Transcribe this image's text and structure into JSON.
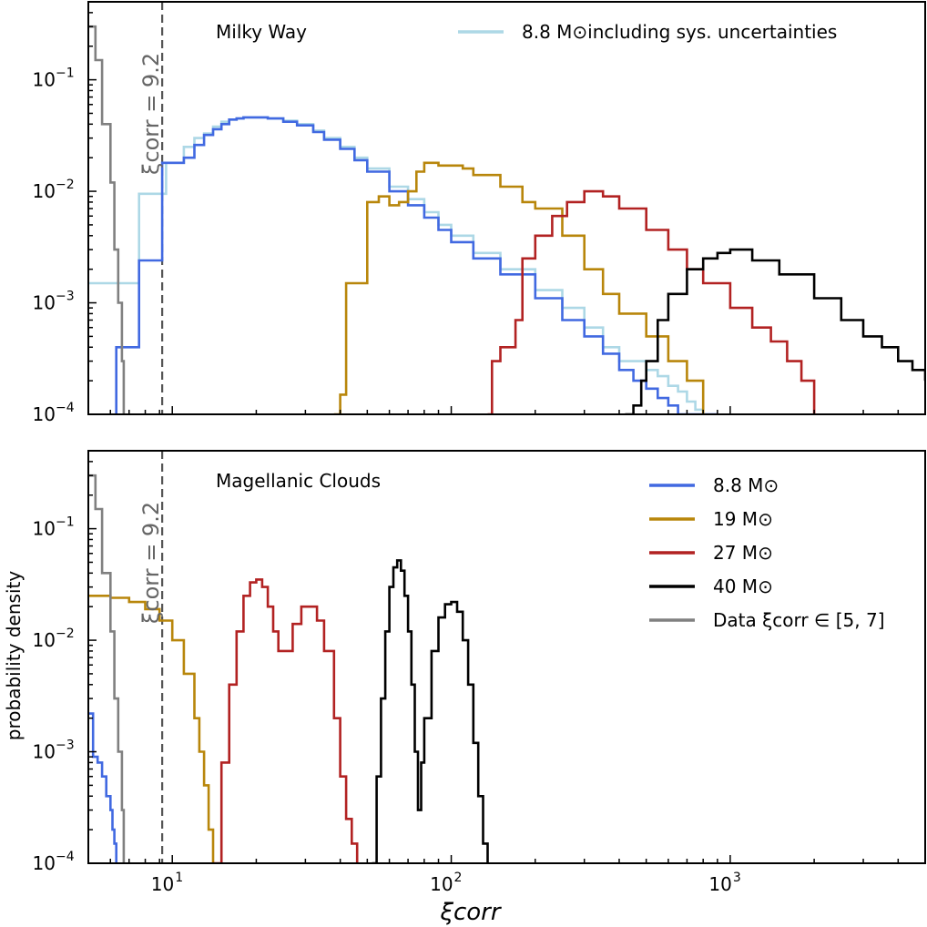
{
  "chart_data": [
    {
      "type": "line",
      "panel_label": "Milky Way",
      "xscale": "log",
      "yscale": "log",
      "xlim": [
        5,
        5000
      ],
      "ylim": [
        0.0001,
        0.5
      ],
      "x_ticks": [
        10,
        100,
        1000
      ],
      "y_ticks": [
        0.0001,
        0.001,
        0.01,
        0.1
      ],
      "y_tick_labels": [
        "10",
        "10",
        "10",
        "10"
      ],
      "y_tick_exponents": [
        "−4",
        "−3",
        "−2",
        "−1"
      ],
      "threshold_line": {
        "x": 9.2,
        "label": "ξcorr = 9.2"
      },
      "legend": {
        "position": "top-right",
        "entries": [
          {
            "label": "8.8 M⊙including sys. uncertainties",
            "color": "#add8e6"
          }
        ]
      },
      "series": [
        {
          "name": "8.8 M⊙including sys. uncertainties",
          "color": "#add8e6",
          "x": [
            5,
            5.8,
            6,
            7.6,
            8,
            8.5,
            9,
            9.5,
            10,
            11,
            12,
            13,
            14,
            15,
            16,
            17,
            18,
            20,
            22,
            25,
            28,
            32,
            35,
            40,
            45,
            50,
            60,
            70,
            80,
            90,
            100,
            120,
            150,
            200,
            250,
            300,
            350,
            400,
            450,
            500,
            550,
            600,
            650,
            700,
            750,
            800
          ],
          "y": [
            0.0015,
            0.0015,
            0.0015,
            0.0095,
            0.0095,
            0.0095,
            0.0095,
            0.018,
            0.018,
            0.025,
            0.03,
            0.033,
            0.038,
            0.042,
            0.044,
            0.045,
            0.046,
            0.046,
            0.045,
            0.043,
            0.04,
            0.035,
            0.03,
            0.025,
            0.02,
            0.016,
            0.011,
            0.0085,
            0.0065,
            0.005,
            0.004,
            0.0028,
            0.002,
            0.0013,
            0.0009,
            0.0006,
            0.0004,
            0.0003,
            0.0003,
            0.00025,
            0.00022,
            0.00018,
            0.00016,
            0.00013,
            0.00011,
            0.0001
          ]
        },
        {
          "name": "8.8 M⊙",
          "color": "#4169e1",
          "x": [
            6.3,
            6.3,
            7.6,
            9.2,
            9.2,
            10,
            11,
            12,
            13,
            14,
            15,
            16,
            17,
            18,
            20,
            22,
            25,
            28,
            32,
            35,
            40,
            45,
            50,
            60,
            70,
            80,
            90,
            100,
            120,
            150,
            200,
            250,
            300,
            350,
            400,
            450,
            500,
            550,
            600,
            650,
            700,
            800,
            900
          ],
          "y": [
            0.0001,
            0.0004,
            0.0024,
            0.0024,
            0.018,
            0.018,
            0.02,
            0.026,
            0.032,
            0.036,
            0.04,
            0.044,
            0.045,
            0.046,
            0.046,
            0.045,
            0.042,
            0.039,
            0.034,
            0.029,
            0.024,
            0.019,
            0.015,
            0.01,
            0.0075,
            0.0058,
            0.0045,
            0.0035,
            0.0025,
            0.0018,
            0.0011,
            0.0007,
            0.0005,
            0.00035,
            0.00025,
            0.0002,
            0.00017,
            0.00014,
            0.00012,
            0.0001,
            0.0001,
            0.0001,
            0.0001
          ]
        },
        {
          "name": "19 M⊙",
          "color": "#b8860b",
          "x": [
            38,
            38,
            40,
            42,
            45,
            50,
            55,
            60,
            65,
            70,
            75,
            80,
            90,
            100,
            110,
            120,
            150,
            180,
            200,
            250,
            300,
            350,
            400,
            500,
            600,
            700,
            800
          ],
          "y": [
            0.0001,
            0.0001,
            0.00015,
            0.0015,
            0.0015,
            0.008,
            0.009,
            0.0075,
            0.008,
            0.01,
            0.015,
            0.018,
            0.017,
            0.017,
            0.016,
            0.014,
            0.011,
            0.008,
            0.007,
            0.004,
            0.002,
            0.0012,
            0.0008,
            0.0005,
            0.0003,
            0.0002,
            0.0001
          ]
        },
        {
          "name": "27 M⊙",
          "color": "#b22222",
          "x": [
            135,
            135,
            140,
            150,
            160,
            170,
            180,
            200,
            230,
            260,
            300,
            350,
            400,
            500,
            600,
            700,
            800,
            1000,
            1200,
            1400,
            1600,
            1800,
            2000
          ],
          "y": [
            0.0001,
            0.0001,
            0.0003,
            0.0004,
            0.0004,
            0.0007,
            0.0025,
            0.004,
            0.006,
            0.008,
            0.01,
            0.009,
            0.007,
            0.0045,
            0.003,
            0.002,
            0.0015,
            0.0009,
            0.0006,
            0.00045,
            0.0003,
            0.0002,
            0.0001
          ]
        },
        {
          "name": "40 M⊙",
          "color": "#000000",
          "x": [
            420,
            420,
            450,
            480,
            500,
            550,
            600,
            700,
            800,
            900,
            1000,
            1200,
            1500,
            2000,
            2500,
            3000,
            3500,
            4000,
            4500,
            5000
          ],
          "y": [
            0.0001,
            0.0001,
            0.00012,
            0.0002,
            0.0003,
            0.0007,
            0.0012,
            0.002,
            0.0025,
            0.0028,
            0.003,
            0.0024,
            0.0018,
            0.0011,
            0.0007,
            0.0005,
            0.0004,
            0.0003,
            0.00025,
            0.0002
          ]
        },
        {
          "name": "Data ξcorr ∈ [5, 7]",
          "color": "#808080",
          "x": [
            5,
            5.3,
            5.6,
            6,
            6.2,
            6.4,
            6.6,
            6.7
          ],
          "y": [
            0.3,
            0.15,
            0.04,
            0.012,
            0.003,
            0.001,
            0.0003,
            0.0001
          ]
        }
      ]
    },
    {
      "type": "line",
      "panel_label": "Magellanic Clouds",
      "xscale": "log",
      "yscale": "log",
      "xlim": [
        5,
        5000
      ],
      "ylim": [
        0.0001,
        0.5
      ],
      "xlabel": "ξcorr",
      "ylabel": "probability density",
      "x_ticks": [
        10,
        100,
        1000
      ],
      "x_tick_labels": [
        "10",
        "10",
        "10"
      ],
      "x_tick_exponents": [
        "1",
        "2",
        "3"
      ],
      "y_ticks": [
        0.0001,
        0.001,
        0.01,
        0.1
      ],
      "y_tick_labels": [
        "10",
        "10",
        "10",
        "10"
      ],
      "y_tick_exponents": [
        "−4",
        "−3",
        "−2",
        "−1"
      ],
      "threshold_line": {
        "x": 9.2,
        "label": "ξcorr = 9.2"
      },
      "legend": {
        "position": "top-right",
        "entries": [
          {
            "label": "8.8 M⊙",
            "color": "#4169e1"
          },
          {
            "label": "19 M⊙",
            "color": "#b8860b"
          },
          {
            "label": "27 M⊙",
            "color": "#b22222"
          },
          {
            "label": "40 M⊙",
            "color": "#000000"
          },
          {
            "label": "Data ξcorr ∈ [5, 7]",
            "color": "#808080"
          }
        ]
      },
      "series": [
        {
          "name": "8.8 M⊙",
          "color": "#4169e1",
          "x": [
            5,
            5.2,
            5.4,
            5.6,
            5.8,
            6,
            6.1,
            6.2,
            6.3
          ],
          "y": [
            0.0022,
            0.0009,
            0.0008,
            0.0006,
            0.0004,
            0.0003,
            0.0002,
            0.00015,
            0.0001
          ]
        },
        {
          "name": "19 M⊙",
          "color": "#b8860b",
          "x": [
            5,
            6,
            7,
            8,
            9,
            10,
            11,
            12,
            12.5,
            13,
            13.5,
            14
          ],
          "y": [
            0.025,
            0.024,
            0.022,
            0.019,
            0.015,
            0.01,
            0.005,
            0.002,
            0.001,
            0.0005,
            0.0002,
            0.0001
          ]
        },
        {
          "name": "27 M⊙",
          "color": "#b22222",
          "x": [
            14,
            15,
            16,
            17,
            18,
            19,
            20,
            21,
            22,
            23,
            24,
            25,
            27,
            29,
            31,
            33,
            35,
            38,
            40,
            42,
            44,
            46
          ],
          "y": [
            0.0001,
            0.0008,
            0.004,
            0.012,
            0.025,
            0.033,
            0.035,
            0.03,
            0.02,
            0.012,
            0.008,
            0.008,
            0.014,
            0.02,
            0.02,
            0.015,
            0.008,
            0.002,
            0.0006,
            0.00025,
            0.00015,
            0.0001
          ]
        },
        {
          "name": "40 M⊙",
          "color": "#000000",
          "x": [
            52,
            54,
            56,
            58,
            60,
            62,
            64,
            66,
            68,
            70,
            72,
            74,
            76,
            78,
            80,
            85,
            90,
            95,
            100,
            105,
            110,
            115,
            120,
            125,
            130,
            135
          ],
          "y": [
            0.0001,
            0.0006,
            0.003,
            0.012,
            0.03,
            0.045,
            0.052,
            0.042,
            0.025,
            0.012,
            0.004,
            0.001,
            0.0003,
            0.0008,
            0.002,
            0.008,
            0.016,
            0.021,
            0.022,
            0.018,
            0.01,
            0.004,
            0.0012,
            0.0004,
            0.00015,
            0.0001
          ]
        },
        {
          "name": "Data ξcorr ∈ [5, 7]",
          "color": "#808080",
          "x": [
            5,
            5.3,
            5.6,
            6,
            6.2,
            6.4,
            6.6,
            6.7
          ],
          "y": [
            0.3,
            0.15,
            0.04,
            0.012,
            0.003,
            0.001,
            0.0003,
            0.0001
          ]
        }
      ]
    }
  ]
}
